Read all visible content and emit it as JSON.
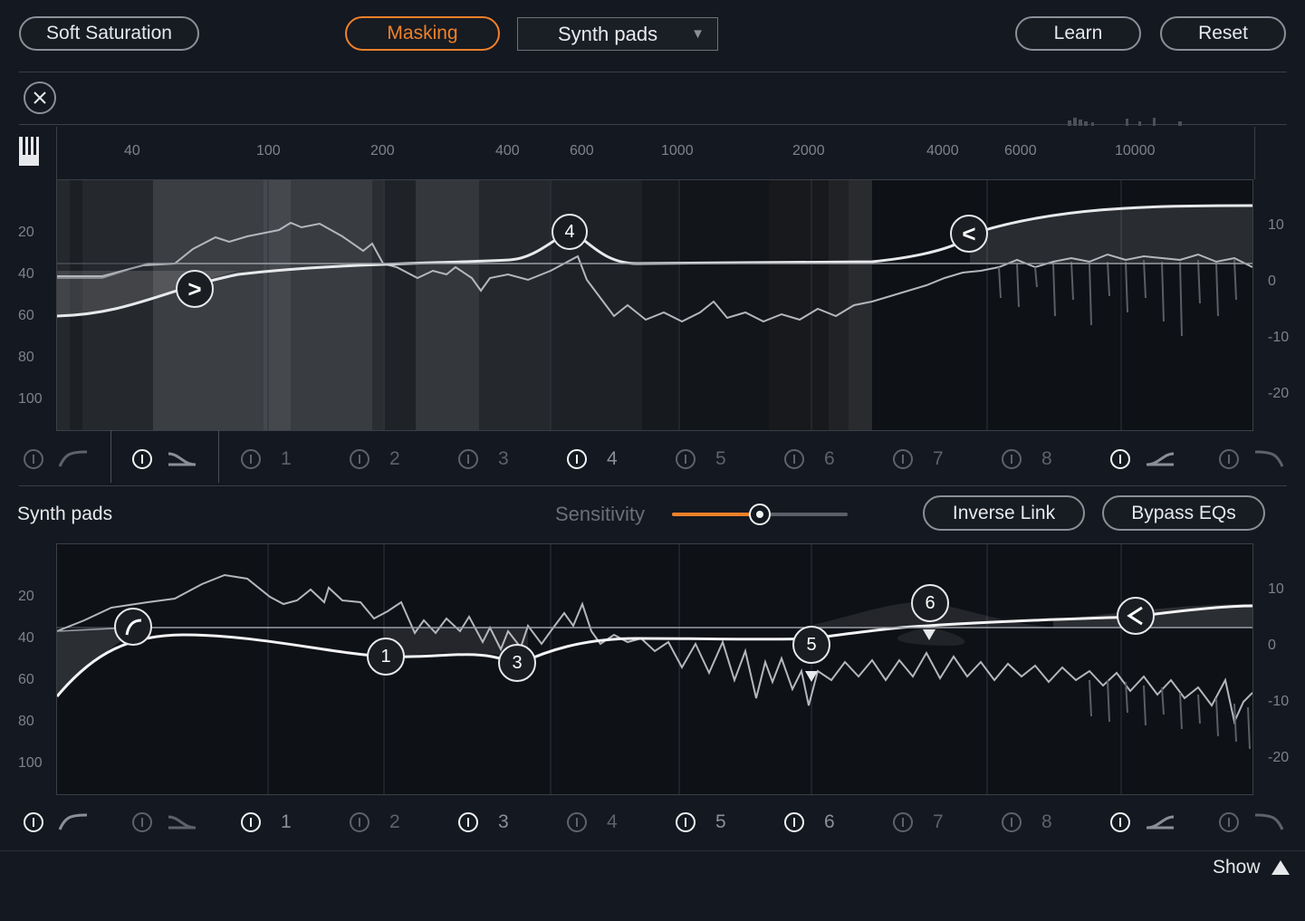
{
  "toolbar": {
    "mode_label": "Soft Saturation",
    "masking_label": "Masking",
    "track_select": "Synth pads",
    "learn_label": "Learn",
    "reset_label": "Reset"
  },
  "freq_ticks": [
    "40",
    "100",
    "200",
    "400",
    "600",
    "1000",
    "2000",
    "4000",
    "6000",
    "10000"
  ],
  "top_eq": {
    "left_scale": [
      "20",
      "40",
      "60",
      "80",
      "100"
    ],
    "right_scale": [
      "10",
      "0",
      "-10",
      "-20"
    ],
    "nodes": [
      ">",
      "4",
      "<"
    ]
  },
  "bottom_eq": {
    "title": "Synth pads",
    "sensitivity_label": "Sensitivity",
    "sensitivity_value": 0.5,
    "inverse_link_label": "Inverse Link",
    "bypass_label": "Bypass EQs",
    "left_scale": [
      "20",
      "40",
      "60",
      "80",
      "100"
    ],
    "right_scale": [
      "10",
      "0",
      "-10",
      "-20"
    ],
    "nodes": [
      "1",
      "3",
      "5",
      "6"
    ]
  },
  "band_numbers": [
    "1",
    "2",
    "3",
    "4",
    "5",
    "6",
    "7",
    "8"
  ],
  "footer": {
    "show_label": "Show"
  },
  "colors": {
    "accent": "#f0812a",
    "background": "#141820",
    "panel": "#0e1116"
  }
}
